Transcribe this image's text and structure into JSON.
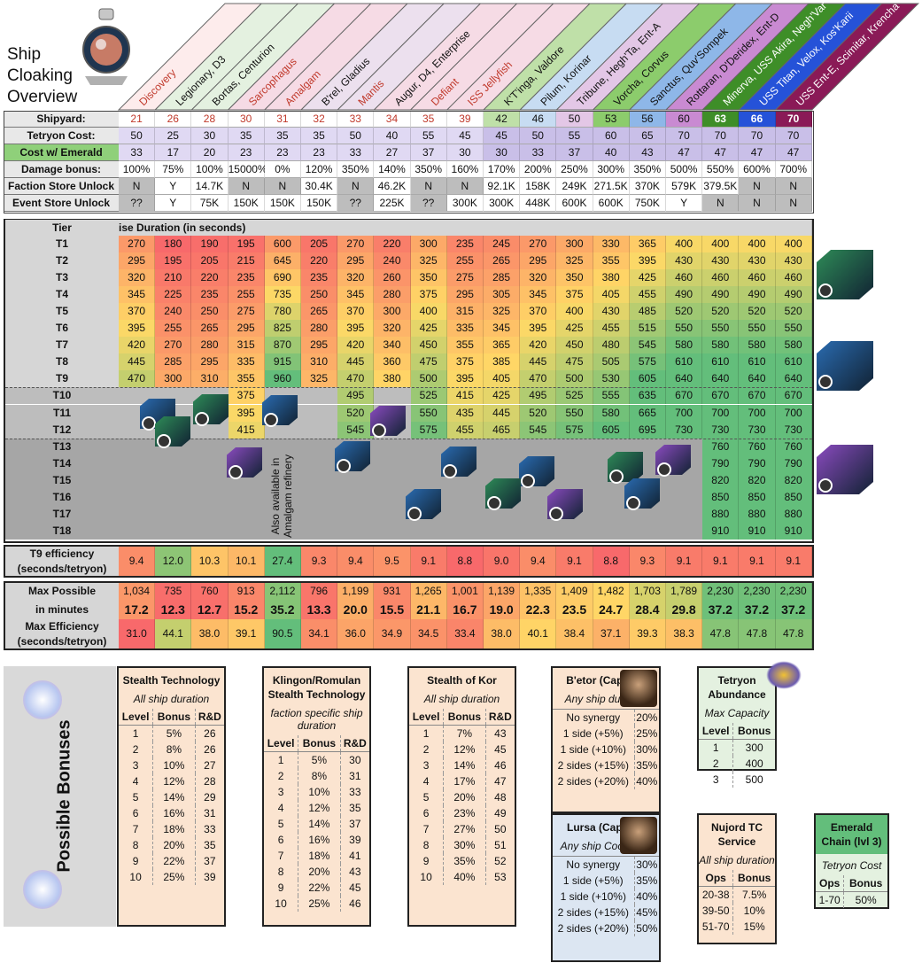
{
  "title_lines": [
    "Ship",
    "Cloaking",
    "Overview"
  ],
  "ships": [
    {
      "name": "Discovery",
      "color": "#c0392b",
      "bg": "#fdecec"
    },
    {
      "name": "Legionary, D3",
      "color": "#111",
      "bg": "#e4f1e0"
    },
    {
      "name": "Bortas, Centurion",
      "color": "#111",
      "bg": "#e4f1e0"
    },
    {
      "name": "Sarcophagus",
      "color": "#c0392b",
      "bg": "#f6dbe5"
    },
    {
      "name": "Amalgam",
      "color": "#c0392b",
      "bg": "#f6dbe5"
    },
    {
      "name": "B'rel, Gladius",
      "color": "#111",
      "bg": "#ece0ee"
    },
    {
      "name": "Mantis",
      "color": "#c0392b",
      "bg": "#ece0ee"
    },
    {
      "name": "Augur, D4, Enterprise",
      "color": "#111",
      "bg": "#f6dbe5"
    },
    {
      "name": "Defiant",
      "color": "#c0392b",
      "bg": "#f6dbe5"
    },
    {
      "name": "ISS Jellyfish",
      "color": "#c0392b",
      "bg": "#f6dbe5"
    },
    {
      "name": "K'T'inga, Valdore",
      "color": "#111",
      "bg": "#bfe0a8"
    },
    {
      "name": "Pilum, Korinar",
      "color": "#111",
      "bg": "#c7dcf2"
    },
    {
      "name": "Tribune, Hegh'Ta, Ent-A",
      "color": "#111",
      "bg": "#e3c7e6"
    },
    {
      "name": "Vorcha, Corvus",
      "color": "#111",
      "bg": "#8ccc6c"
    },
    {
      "name": "Sanctus, Quv'Sompek",
      "color": "#111",
      "bg": "#8eb7e8"
    },
    {
      "name": "Rottaran, D'Deridex, Ent-D",
      "color": "#111",
      "bg": "#c98ad2"
    },
    {
      "name": "Minerva, USS Akira, Negh'Var",
      "color": "#fff",
      "bg": "#3e8e28"
    },
    {
      "name": "USS Titan, Velox, Kos'Karii",
      "color": "#fff",
      "bg": "#2552d8"
    },
    {
      "name": "USS Ent-E, Scimitar, Krencha",
      "color": "#fff",
      "bg": "#8a1a57"
    }
  ],
  "top_rows": [
    {
      "label": "Shipyard:",
      "label_bg": "#e8e8e8",
      "values": [
        "21",
        "26",
        "28",
        "30",
        "31",
        "32",
        "33",
        "34",
        "35",
        "39",
        "42",
        "46",
        "50",
        "53",
        "56",
        "60",
        "63",
        "66",
        "70"
      ]
    },
    {
      "label": "Tetryon Cost:",
      "label_bg": "#e8e8e8",
      "values": [
        "50",
        "25",
        "30",
        "35",
        "35",
        "35",
        "50",
        "40",
        "55",
        "45",
        "45",
        "50",
        "55",
        "60",
        "65",
        "70",
        "70",
        "70",
        "70"
      ]
    },
    {
      "label": "Cost w/ Emerald Chain:",
      "label_bg": "#8fd07a",
      "values": [
        "33",
        "17",
        "20",
        "23",
        "23",
        "23",
        "33",
        "27",
        "37",
        "30",
        "30",
        "33",
        "37",
        "40",
        "43",
        "47",
        "47",
        "47",
        "47"
      ]
    },
    {
      "label": "Damage bonus:",
      "label_bg": "#e8e8e8",
      "values": [
        "100%",
        "75%",
        "100%",
        "15000%",
        "0%",
        "120%",
        "350%",
        "140%",
        "350%",
        "160%",
        "170%",
        "200%",
        "250%",
        "300%",
        "350%",
        "500%",
        "550%",
        "600%",
        "700%"
      ]
    },
    {
      "label": "Faction Store Unlock",
      "label_bg": "#e8e8e8",
      "values": [
        "N",
        "Y",
        "14.7K",
        "N",
        "N",
        "30.4K",
        "N",
        "46.2K",
        "N",
        "N",
        "92.1K",
        "158K",
        "249K",
        "271.5K",
        "370K",
        "579K",
        "379.5K",
        "N",
        "N"
      ]
    },
    {
      "label": "Event Store Unlock",
      "label_bg": "#e8e8e8",
      "values": [
        "??",
        "Y",
        "75K",
        "150K",
        "150K",
        "150K",
        "??",
        "225K",
        "??",
        "300K",
        "300K",
        "448K",
        "600K",
        "600K",
        "750K",
        "Y",
        "N",
        "N",
        "N"
      ]
    }
  ],
  "tier_header": {
    "label": "Tier",
    "duration": "ise Duration (in seconds)"
  },
  "tiers": [
    "T1",
    "T2",
    "T3",
    "T4",
    "T5",
    "T6",
    "T7",
    "T8",
    "T9",
    "T10",
    "T11",
    "T12",
    "T13",
    "T14",
    "T15",
    "T16",
    "T17",
    "T18"
  ],
  "durations": [
    [
      "270",
      "180",
      "190",
      "195",
      "600",
      "205",
      "270",
      "220",
      "300",
      "235",
      "245",
      "270",
      "300",
      "330",
      "365",
      "400",
      "400",
      "400",
      "400"
    ],
    [
      "295",
      "195",
      "205",
      "215",
      "645",
      "220",
      "295",
      "240",
      "325",
      "255",
      "265",
      "295",
      "325",
      "355",
      "395",
      "430",
      "430",
      "430",
      "430"
    ],
    [
      "320",
      "210",
      "220",
      "235",
      "690",
      "235",
      "320",
      "260",
      "350",
      "275",
      "285",
      "320",
      "350",
      "380",
      "425",
      "460",
      "460",
      "460",
      "460"
    ],
    [
      "345",
      "225",
      "235",
      "255",
      "735",
      "250",
      "345",
      "280",
      "375",
      "295",
      "305",
      "345",
      "375",
      "405",
      "455",
      "490",
      "490",
      "490",
      "490"
    ],
    [
      "370",
      "240",
      "250",
      "275",
      "780",
      "265",
      "370",
      "300",
      "400",
      "315",
      "325",
      "370",
      "400",
      "430",
      "485",
      "520",
      "520",
      "520",
      "520"
    ],
    [
      "395",
      "255",
      "265",
      "295",
      "825",
      "280",
      "395",
      "320",
      "425",
      "335",
      "345",
      "395",
      "425",
      "455",
      "515",
      "550",
      "550",
      "550",
      "550"
    ],
    [
      "420",
      "270",
      "280",
      "315",
      "870",
      "295",
      "420",
      "340",
      "450",
      "355",
      "365",
      "420",
      "450",
      "480",
      "545",
      "580",
      "580",
      "580",
      "580"
    ],
    [
      "445",
      "285",
      "295",
      "335",
      "915",
      "310",
      "445",
      "360",
      "475",
      "375",
      "385",
      "445",
      "475",
      "505",
      "575",
      "610",
      "610",
      "610",
      "610"
    ],
    [
      "470",
      "300",
      "310",
      "355",
      "960",
      "325",
      "470",
      "380",
      "500",
      "395",
      "405",
      "470",
      "500",
      "530",
      "605",
      "640",
      "640",
      "640",
      "640"
    ],
    [
      "",
      "",
      "",
      "375",
      "",
      "",
      "495",
      "",
      "525",
      "415",
      "425",
      "495",
      "525",
      "555",
      "635",
      "670",
      "670",
      "670",
      "670"
    ],
    [
      "",
      "",
      "",
      "395",
      "",
      "",
      "520",
      "",
      "550",
      "435",
      "445",
      "520",
      "550",
      "580",
      "665",
      "700",
      "700",
      "700",
      "700"
    ],
    [
      "",
      "",
      "",
      "415",
      "",
      "",
      "545",
      "",
      "575",
      "455",
      "465",
      "545",
      "575",
      "605",
      "695",
      "730",
      "730",
      "730",
      "730"
    ],
    [
      "",
      "",
      "",
      "",
      "",
      "",
      "",
      "",
      "",
      "",
      "",
      "",
      "",
      "",
      "",
      "",
      "760",
      "760",
      "760"
    ],
    [
      "",
      "",
      "",
      "",
      "",
      "",
      "",
      "",
      "",
      "",
      "",
      "",
      "",
      "",
      "",
      "",
      "790",
      "790",
      "790"
    ],
    [
      "",
      "",
      "",
      "",
      "",
      "",
      "",
      "",
      "",
      "",
      "",
      "",
      "",
      "",
      "",
      "",
      "820",
      "820",
      "820"
    ],
    [
      "",
      "",
      "",
      "",
      "",
      "",
      "",
      "",
      "",
      "",
      "",
      "",
      "",
      "",
      "",
      "",
      "850",
      "850",
      "850"
    ],
    [
      "",
      "",
      "",
      "",
      "",
      "",
      "",
      "",
      "",
      "",
      "",
      "",
      "",
      "",
      "",
      "",
      "880",
      "880",
      "880"
    ],
    [
      "",
      "",
      "",
      "",
      "",
      "",
      "",
      "",
      "",
      "",
      "",
      "",
      "",
      "",
      "",
      "",
      "910",
      "910",
      "910"
    ]
  ],
  "amalgam_note": [
    "Also available in",
    "Amalgam refinery"
  ],
  "t9_efficiency": {
    "label": [
      "T9 efficiency",
      "(seconds/tetryon)"
    ],
    "values": [
      "9.4",
      "12.0",
      "10.3",
      "10.1",
      "27.4",
      "9.3",
      "9.4",
      "9.5",
      "9.1",
      "8.8",
      "9.0",
      "9.4",
      "9.1",
      "8.8",
      "9.3",
      "9.1",
      "9.1",
      "9.1",
      "9.1"
    ]
  },
  "max_possible": {
    "label": "Max Possible",
    "values": [
      "1,034",
      "735",
      "760",
      "913",
      "2,112",
      "796",
      "1,199",
      "931",
      "1,265",
      "1,001",
      "1,139",
      "1,335",
      "1,409",
      "1,482",
      "1,703",
      "1,789",
      "2,230",
      "2,230",
      "2,230"
    ]
  },
  "in_minutes": {
    "label": "in minutes",
    "values": [
      "17.2",
      "12.3",
      "12.7",
      "15.2",
      "35.2",
      "13.3",
      "20.0",
      "15.5",
      "21.1",
      "16.7",
      "19.0",
      "22.3",
      "23.5",
      "24.7",
      "28.4",
      "29.8",
      "37.2",
      "37.2",
      "37.2"
    ]
  },
  "max_efficiency": {
    "label": [
      "Max Efficiency",
      "(seconds/tetryon)"
    ],
    "values": [
      "31.0",
      "44.1",
      "38.0",
      "39.1",
      "90.5",
      "34.1",
      "36.0",
      "34.9",
      "34.5",
      "33.4",
      "38.0",
      "40.1",
      "38.4",
      "37.1",
      "39.3",
      "38.3",
      "47.8",
      "47.8",
      "47.8"
    ]
  },
  "bonuses_title": "Possible Bonuses",
  "panels": {
    "stealth": {
      "title": "Stealth Technology",
      "sub": "All ship duration",
      "cols": [
        "Level",
        "Bonus",
        "R&D"
      ],
      "rows": [
        [
          "1",
          "5%",
          "26"
        ],
        [
          "2",
          "8%",
          "26"
        ],
        [
          "3",
          "10%",
          "27"
        ],
        [
          "4",
          "12%",
          "28"
        ],
        [
          "5",
          "14%",
          "29"
        ],
        [
          "6",
          "16%",
          "31"
        ],
        [
          "7",
          "18%",
          "33"
        ],
        [
          "8",
          "20%",
          "35"
        ],
        [
          "9",
          "22%",
          "37"
        ],
        [
          "10",
          "25%",
          "39"
        ]
      ]
    },
    "klingon": {
      "title": "Klingon/Romulan Stealth Technology",
      "sub": "faction specific ship duration",
      "cols": [
        "Level",
        "Bonus",
        "R&D"
      ],
      "rows": [
        [
          "1",
          "5%",
          "30"
        ],
        [
          "2",
          "8%",
          "31"
        ],
        [
          "3",
          "10%",
          "33"
        ],
        [
          "4",
          "12%",
          "35"
        ],
        [
          "5",
          "14%",
          "37"
        ],
        [
          "6",
          "16%",
          "39"
        ],
        [
          "7",
          "18%",
          "41"
        ],
        [
          "8",
          "20%",
          "43"
        ],
        [
          "9",
          "22%",
          "45"
        ],
        [
          "10",
          "25%",
          "46"
        ]
      ]
    },
    "kor": {
      "title": "Stealth of Kor",
      "sub": "All ship duration",
      "cols": [
        "Level",
        "Bonus",
        "R&D"
      ],
      "rows": [
        [
          "1",
          "7%",
          "43"
        ],
        [
          "2",
          "12%",
          "45"
        ],
        [
          "3",
          "14%",
          "46"
        ],
        [
          "4",
          "17%",
          "47"
        ],
        [
          "5",
          "20%",
          "48"
        ],
        [
          "6",
          "23%",
          "49"
        ],
        [
          "7",
          "27%",
          "50"
        ],
        [
          "8",
          "30%",
          "51"
        ],
        [
          "9",
          "35%",
          "52"
        ],
        [
          "10",
          "40%",
          "53"
        ]
      ]
    },
    "betor": {
      "title": "B'etor (Captain)",
      "sub": "Any ship duration",
      "rows": [
        [
          "No synergy",
          "20%"
        ],
        [
          "1 side (+5%)",
          "25%"
        ],
        [
          "1 side (+10%)",
          "30%"
        ],
        [
          "2 sides (+15%)",
          "35%"
        ],
        [
          "2 sides (+20%)",
          "40%"
        ]
      ]
    },
    "lursa": {
      "title": "Lursa (Captain)",
      "sub": "Any ship Cooldown",
      "rows": [
        [
          "No synergy",
          "30%"
        ],
        [
          "1 side (+5%)",
          "35%"
        ],
        [
          "1 side (+10%)",
          "40%"
        ],
        [
          "2 sides (+15%)",
          "45%"
        ],
        [
          "2 sides (+20%)",
          "50%"
        ]
      ]
    },
    "tetryon": {
      "title": "Tetryon Abundance",
      "sub": "Max Capacity",
      "cols": [
        "Level",
        "Bonus"
      ],
      "rows": [
        [
          "1",
          "300"
        ],
        [
          "2",
          "400"
        ],
        [
          "3",
          "500"
        ]
      ]
    },
    "nujord": {
      "title": "Nujord TC Service",
      "sub": "All ship duration",
      "cols": [
        "Ops",
        "Bonus"
      ],
      "rows": [
        [
          "20-38",
          "7.5%"
        ],
        [
          "39-50",
          "10%"
        ],
        [
          "51-70",
          "15%"
        ]
      ]
    },
    "emerald": {
      "title": "Emerald Chain (lvl 3)",
      "sub": "Tetryon Cost",
      "cols": [
        "Ops",
        "Bonus"
      ],
      "rows": [
        [
          "1-70",
          "50%"
        ]
      ]
    }
  },
  "colors": {
    "green": "#63be7b",
    "yellow": "#ffd966",
    "red": "#f8696b",
    "orange": "#f5a259",
    "grey1": "#d6d6d6",
    "grey2": "#b0b0b0",
    "grey3": "#9a9a9a"
  }
}
